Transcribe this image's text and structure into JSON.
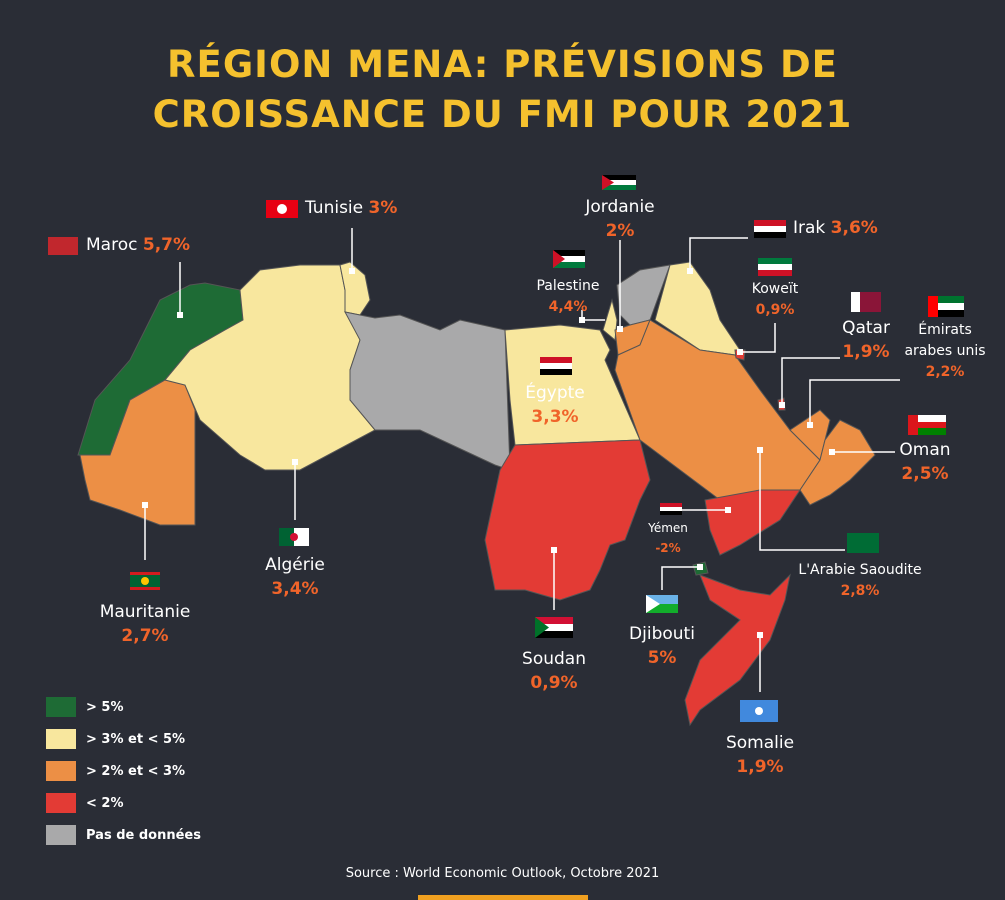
{
  "header": {
    "title": "RÉGION MENA: PRÉVISIONS DE CROISSANCE DU FMI POUR 2021"
  },
  "countries": [
    {
      "name": "Maroc",
      "value": "5,7%"
    },
    {
      "name": "Tunisie",
      "value": "3%"
    },
    {
      "name": "Jordanie",
      "value": "2%"
    },
    {
      "name": "Irak",
      "value": "3,6%"
    },
    {
      "name": "Palestine",
      "value": "4,4%"
    },
    {
      "name": "Koweït",
      "value": "0,9%"
    },
    {
      "name": "Qatar",
      "value": "1,9%"
    },
    {
      "name": "Émirats arabes unis",
      "value": "2,2%"
    },
    {
      "name": "Égypte",
      "value": "3,3%"
    },
    {
      "name": "Oman",
      "value": "2,5%"
    },
    {
      "name": "Yémen",
      "value": "-2%"
    },
    {
      "name": "L'Arabie Saoudite",
      "value": "2,8%"
    },
    {
      "name": "Mauritanie",
      "value": "2,7%"
    },
    {
      "name": "Algérie",
      "value": "3,4%"
    },
    {
      "name": "Soudan",
      "value": "0,9%"
    },
    {
      "name": "Djibouti",
      "value": "5%"
    },
    {
      "name": "Somalie",
      "value": "1,9%"
    }
  ],
  "legend": [
    {
      "label": "> 5%",
      "color": "#1e6b35"
    },
    {
      "label": "> 3% et < 5%",
      "color": "#f8e79e"
    },
    {
      "label": "> 2% et < 3%",
      "color": "#ec8f45"
    },
    {
      "label": "< 2%",
      "color": "#e33b35"
    },
    {
      "label": "Pas de données",
      "color": "#a9a9aa"
    }
  ],
  "footer": {
    "source": "Source : World Economic Outlook, Octobre 2021"
  }
}
